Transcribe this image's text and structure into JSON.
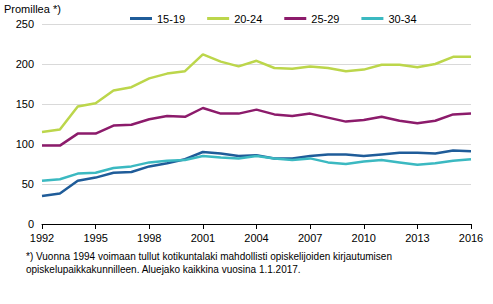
{
  "chart_data": {
    "type": "line",
    "y_label": "Promillea *)",
    "note": "*) Vuonna 1994 voimaan tullut kotikuntalaki mahdollisti opiskelijoiden kirjautumisen opiskelupaikkakunnilleen. Aluejako kaikkina vuosina 1.1.2017.",
    "x": [
      1992,
      1993,
      1994,
      1995,
      1996,
      1997,
      1998,
      1999,
      2000,
      2001,
      2002,
      2003,
      2004,
      2005,
      2006,
      2007,
      2008,
      2009,
      2010,
      2011,
      2012,
      2013,
      2014,
      2015,
      2016
    ],
    "series": [
      {
        "name": "15-19",
        "color": "#1f5c99",
        "values": [
          35,
          38,
          54,
          58,
          64,
          65,
          72,
          76,
          81,
          90,
          88,
          85,
          86,
          82,
          82,
          85,
          87,
          87,
          85,
          87,
          89,
          89,
          88,
          92,
          91
        ]
      },
      {
        "name": "20-24",
        "color": "#bcd64b",
        "values": [
          115,
          118,
          147,
          151,
          167,
          171,
          182,
          188,
          191,
          212,
          203,
          197,
          204,
          195,
          194,
          197,
          195,
          191,
          193,
          199,
          199,
          196,
          200,
          209,
          209
        ]
      },
      {
        "name": "25-29",
        "color": "#8c1b6b",
        "values": [
          98,
          98,
          113,
          113,
          123,
          124,
          131,
          135,
          134,
          145,
          138,
          138,
          143,
          137,
          135,
          138,
          133,
          128,
          130,
          134,
          129,
          126,
          129,
          137,
          138
        ]
      },
      {
        "name": "30-34",
        "color": "#3bb9c1",
        "values": [
          54,
          56,
          63,
          64,
          70,
          72,
          77,
          79,
          80,
          85,
          83,
          82,
          85,
          82,
          80,
          82,
          77,
          75,
          78,
          80,
          77,
          74,
          76,
          79,
          81
        ]
      }
    ],
    "xlim": [
      1992,
      2016
    ],
    "xticks": [
      1992,
      1995,
      1998,
      2001,
      2004,
      2007,
      2010,
      2013,
      2016
    ],
    "ylim": [
      0,
      250
    ],
    "yticks": [
      0,
      50,
      100,
      150,
      200,
      250
    ],
    "grid": true,
    "legend": "top"
  }
}
